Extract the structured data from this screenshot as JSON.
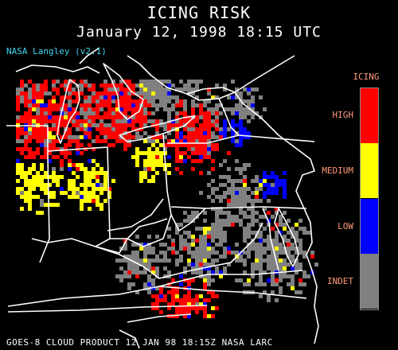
{
  "header": {
    "title": "ICING RISK",
    "subtitle": "January 12, 1998 18:15 UTC",
    "credit": "NASA Langley (v2.1)"
  },
  "footer": {
    "text": "GOES-8 CLOUD PRODUCT   12 JAN 98 18:15Z NASA LARC"
  },
  "legend": {
    "title": "ICING",
    "items": [
      {
        "label": "HIGH",
        "color": "#ff0000"
      },
      {
        "label": "MEDIUM",
        "color": "#ffff00"
      },
      {
        "label": "LOW",
        "color": "#0000ff"
      },
      {
        "label": "INDET",
        "color": "#808080"
      }
    ]
  },
  "colors": {
    "background": "#000000",
    "boundary": "#ffffff",
    "clear": "#000000"
  }
}
